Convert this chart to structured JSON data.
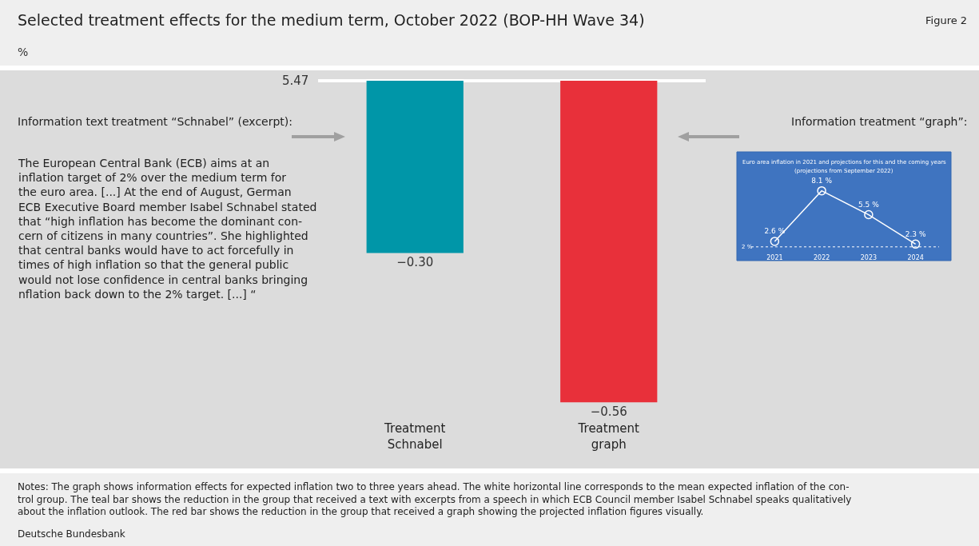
{
  "chart_data": [
    {
      "type": "bar",
      "title": "Selected treatment effects for the medium term, October 2022 (BOP-HH Wave 34)",
      "ylabel": "%",
      "categories": [
        "Treatment\nSchnabel",
        "Treatment\ngraph"
      ],
      "values": [
        -0.3,
        -0.56
      ],
      "colors": [
        "#0096a8",
        "#e8303a"
      ],
      "value_labels": [
        "−0.30",
        "−0.56"
      ],
      "tick_labels": "x",
      "annotations": [
        "Information text treatment “Schnabel” (excerpt):",
        "The European Central Bank (ECB) aims at an\ninflation target of 2% over the medium term for\nthe euro area. [...] At the end of August, German\nECB Executive Board member Isabel Schnabel stated\nthat “high inflation has become the dominant con-\ncern of citizens in many countries”. She highlighted\nthat central banks would have to act forcefully in\ntimes of high inflation so that the general public\nwould not lose confidence in central banks bringing\nnflation back down to the 2% target. [...] “",
        "Information treatment “graph”:",
        "Notes: The graph shows information effects for expected inflation two to three years ahead. The white horizontal line corresponds to the mean expected inflation of the con-\ntrol group. The teal bar shows the reduction in the group that received a text with excerpts from a speech in which ECB Council member Isabel Schnabel speaks qualitatively\nabout the inflation outlook. The red bar shows the reduction in the group that received a graph showing the projected inflation figures visually.",
        "Deutsche Bundesbank",
        "Figure 2",
        "5.47"
      ]
    },
    {
      "type": "line",
      "title": "Euro area inflation in 2021 and projections for this and the coming years",
      "subtitle": "(projections from September 2022)",
      "categories": [
        "2021",
        "2022",
        "2023",
        "2024"
      ],
      "values": [
        2.6,
        8.1,
        5.5,
        2.3
      ],
      "color": "#ffffff",
      "value_labels": [
        "2.6 %",
        "8.1 %",
        "5.5 %",
        "2.3 %"
      ],
      "marker": "circle",
      "ref_lines": [
        {
          "axis": "y",
          "value": 2,
          "label": "2 %",
          "line_style": "dotted"
        }
      ],
      "tick_labels": "x"
    }
  ]
}
